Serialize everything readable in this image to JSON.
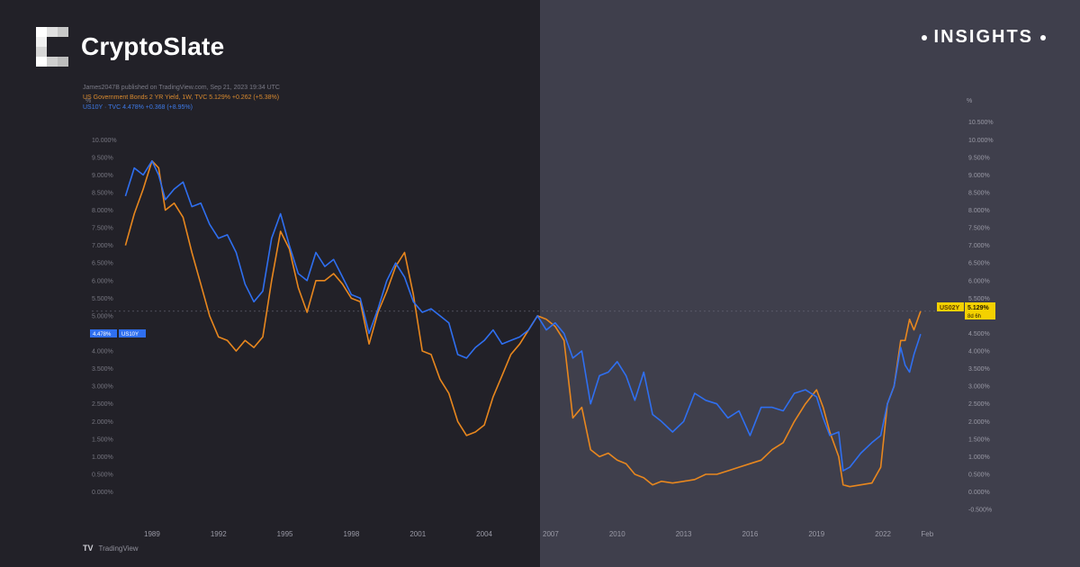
{
  "brand": {
    "name": "CryptoSlate",
    "badge": "INSIGHTS"
  },
  "meta": {
    "published": "James2047B published on TradingView.com, Sep 21, 2023 19:34 UTC",
    "series1_line": "US Government Bonds 2 YR Yield, 1W, TVC  5.129%  +0.262 (+5.38%)",
    "series2_line": "US10Y · TVC  4.478%  +0.368 (+8.95%)"
  },
  "footer": {
    "tradingview": "TradingView",
    "tv_mark": "TV"
  },
  "colors": {
    "bg_left": "#222128",
    "bg_right": "#3f3f4c",
    "us02y": "#e8871e",
    "us10y": "#2f6ff0",
    "label_yellow": "#f4d100"
  },
  "chart_data": {
    "type": "line",
    "x_tick_labels": [
      "1989",
      "1992",
      "1995",
      "1998",
      "2001",
      "2004",
      "2007",
      "2010",
      "2013",
      "2016",
      "2019",
      "2022",
      "Feb"
    ],
    "x_ticks": [
      1989,
      1992,
      1995,
      1998,
      2001,
      2004,
      2007,
      2010,
      2013,
      2016,
      2019,
      2022,
      2024
    ],
    "y_tick_labels": [
      "-0.500%",
      "0.000%",
      "0.500%",
      "1.000%",
      "1.500%",
      "2.000%",
      "2.500%",
      "3.000%",
      "3.500%",
      "4.000%",
      "4.500%",
      "5.000%",
      "5.500%",
      "6.000%",
      "6.500%",
      "7.000%",
      "7.500%",
      "8.000%",
      "8.500%",
      "9.000%",
      "9.500%",
      "10.000%",
      "10.500%"
    ],
    "y_ticks": [
      -0.5,
      0,
      0.5,
      1,
      1.5,
      2,
      2.5,
      3,
      3.5,
      4,
      4.5,
      5,
      5.5,
      6,
      6.5,
      7,
      7.5,
      8,
      8.5,
      9,
      9.5,
      10,
      10.5
    ],
    "left_y_tick_labels": [
      "0.000%",
      "0.500%",
      "1.000%",
      "1.500%",
      "2.000%",
      "2.500%",
      "3.000%",
      "3.500%",
      "4.000%",
      "4.500%",
      "5.000%",
      "5.500%",
      "6.000%",
      "6.500%",
      "7.000%",
      "7.500%",
      "8.000%",
      "8.500%",
      "9.000%",
      "9.500%",
      "10.000%"
    ],
    "left_y_ticks": [
      0,
      0.5,
      1,
      1.5,
      2,
      2.5,
      3,
      3.5,
      4,
      4.5,
      5,
      5.5,
      6,
      6.5,
      7,
      7.5,
      8,
      8.5,
      9,
      9.5,
      10
    ],
    "left_axis_unit": "%",
    "right_axis_unit": "%",
    "xlim": [
      1987.5,
      2024.8
    ],
    "ylim": [
      -0.6,
      10.8
    ],
    "series": [
      {
        "name": "US02Y",
        "color": "#e8871e",
        "x": [
          1987.8,
          1988.2,
          1988.6,
          1989.0,
          1989.3,
          1989.6,
          1990.0,
          1990.4,
          1990.8,
          1991.2,
          1991.6,
          1992.0,
          1992.4,
          1992.8,
          1993.2,
          1993.6,
          1994.0,
          1994.4,
          1994.8,
          1995.2,
          1995.6,
          1996.0,
          1996.4,
          1996.8,
          1997.2,
          1997.6,
          1998.0,
          1998.4,
          1998.8,
          1999.2,
          1999.6,
          2000.0,
          2000.4,
          2000.8,
          2001.2,
          2001.6,
          2002.0,
          2002.4,
          2002.8,
          2003.2,
          2003.6,
          2004.0,
          2004.4,
          2004.8,
          2005.2,
          2005.6,
          2006.0,
          2006.4,
          2006.8,
          2007.2,
          2007.6,
          2008.0,
          2008.4,
          2008.8,
          2009.2,
          2009.6,
          2010.0,
          2010.4,
          2010.8,
          2011.2,
          2011.6,
          2012.0,
          2012.5,
          2013.0,
          2013.5,
          2014.0,
          2014.5,
          2015.0,
          2015.5,
          2016.0,
          2016.5,
          2017.0,
          2017.5,
          2018.0,
          2018.5,
          2019.0,
          2019.3,
          2019.6,
          2020.0,
          2020.2,
          2020.5,
          2021.0,
          2021.5,
          2021.9,
          2022.2,
          2022.5,
          2022.8,
          2023.0,
          2023.2,
          2023.4,
          2023.7
        ],
        "values": [
          7.0,
          7.9,
          8.6,
          9.4,
          9.2,
          8.0,
          8.2,
          7.8,
          6.8,
          5.9,
          5.0,
          4.4,
          4.3,
          4.0,
          4.3,
          4.1,
          4.4,
          6.0,
          7.4,
          6.9,
          5.8,
          5.1,
          6.0,
          6.0,
          6.2,
          5.9,
          5.5,
          5.4,
          4.2,
          5.1,
          5.7,
          6.4,
          6.8,
          5.6,
          4.0,
          3.9,
          3.2,
          2.8,
          2.0,
          1.6,
          1.7,
          1.9,
          2.7,
          3.3,
          3.9,
          4.2,
          4.6,
          5.0,
          4.9,
          4.7,
          4.3,
          2.1,
          2.4,
          1.2,
          1.0,
          1.1,
          0.9,
          0.8,
          0.5,
          0.4,
          0.2,
          0.3,
          0.25,
          0.3,
          0.35,
          0.5,
          0.5,
          0.6,
          0.7,
          0.8,
          0.9,
          1.2,
          1.4,
          2.0,
          2.5,
          2.9,
          2.4,
          1.7,
          1.0,
          0.2,
          0.15,
          0.2,
          0.25,
          0.7,
          2.5,
          3.0,
          4.3,
          4.3,
          4.9,
          4.6,
          5.13
        ]
      },
      {
        "name": "US10Y",
        "color": "#2f6ff0",
        "x": [
          1987.8,
          1988.2,
          1988.6,
          1989.0,
          1989.3,
          1989.6,
          1990.0,
          1990.4,
          1990.8,
          1991.2,
          1991.6,
          1992.0,
          1992.4,
          1992.8,
          1993.2,
          1993.6,
          1994.0,
          1994.4,
          1994.8,
          1995.2,
          1995.6,
          1996.0,
          1996.4,
          1996.8,
          1997.2,
          1997.6,
          1998.0,
          1998.4,
          1998.8,
          1999.2,
          1999.6,
          2000.0,
          2000.4,
          2000.8,
          2001.2,
          2001.6,
          2002.0,
          2002.4,
          2002.8,
          2003.2,
          2003.6,
          2004.0,
          2004.4,
          2004.8,
          2005.2,
          2005.6,
          2006.0,
          2006.4,
          2006.8,
          2007.2,
          2007.6,
          2008.0,
          2008.4,
          2008.8,
          2009.2,
          2009.6,
          2010.0,
          2010.4,
          2010.8,
          2011.2,
          2011.6,
          2012.0,
          2012.5,
          2013.0,
          2013.5,
          2014.0,
          2014.5,
          2015.0,
          2015.5,
          2016.0,
          2016.5,
          2017.0,
          2017.5,
          2018.0,
          2018.5,
          2019.0,
          2019.3,
          2019.6,
          2020.0,
          2020.2,
          2020.5,
          2021.0,
          2021.5,
          2021.9,
          2022.2,
          2022.5,
          2022.8,
          2023.0,
          2023.2,
          2023.4,
          2023.7
        ],
        "values": [
          8.4,
          9.2,
          9.0,
          9.4,
          9.0,
          8.3,
          8.6,
          8.8,
          8.1,
          8.2,
          7.6,
          7.2,
          7.3,
          6.8,
          5.9,
          5.4,
          5.7,
          7.2,
          7.9,
          7.0,
          6.2,
          6.0,
          6.8,
          6.4,
          6.6,
          6.1,
          5.6,
          5.5,
          4.5,
          5.2,
          6.0,
          6.5,
          6.1,
          5.4,
          5.1,
          5.2,
          5.0,
          4.8,
          3.9,
          3.8,
          4.1,
          4.3,
          4.6,
          4.2,
          4.3,
          4.4,
          4.6,
          5.0,
          4.6,
          4.8,
          4.5,
          3.8,
          4.0,
          2.5,
          3.3,
          3.4,
          3.7,
          3.3,
          2.6,
          3.4,
          2.2,
          2.0,
          1.7,
          2.0,
          2.8,
          2.6,
          2.5,
          2.1,
          2.3,
          1.6,
          2.4,
          2.4,
          2.3,
          2.8,
          2.9,
          2.7,
          2.1,
          1.6,
          1.7,
          0.6,
          0.7,
          1.1,
          1.4,
          1.6,
          2.5,
          3.0,
          4.1,
          3.6,
          3.4,
          3.9,
          4.48
        ]
      }
    ],
    "last_values": {
      "us02y_label": "US02Y",
      "us02y_value": "5.129%",
      "us02y_countdown": "8d 6h",
      "us10y_value": "4.478%",
      "us10y_label": "US10Y"
    },
    "grid": false
  }
}
